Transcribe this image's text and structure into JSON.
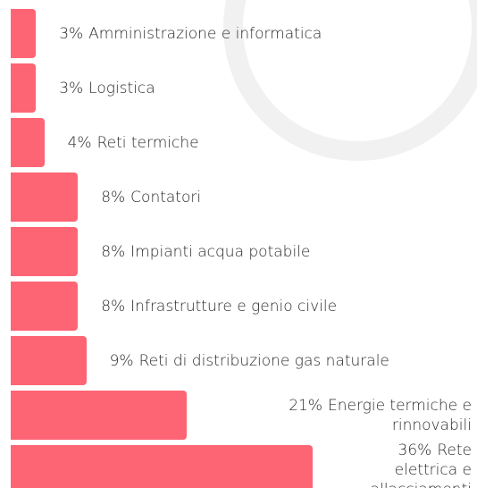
{
  "chart_data": {
    "type": "bar",
    "orientation": "horizontal",
    "color": "#fe6574",
    "categories": [
      "Amministrazione e informatica",
      "Logistica",
      "Reti termiche",
      "Contatori",
      "Impianti acqua potabile",
      "Infrastrutture e genio civile",
      "Reti di distribuzione gas naturale",
      "Energie termiche e rinnovabili",
      "Rete elettrica e allacciamenti"
    ],
    "values": [
      3,
      3,
      4,
      8,
      8,
      8,
      9,
      21,
      36
    ],
    "value_labels": [
      "3%",
      "3%",
      "4%",
      "8%",
      "8%",
      "8%",
      "9%",
      "21%",
      "36%"
    ]
  }
}
